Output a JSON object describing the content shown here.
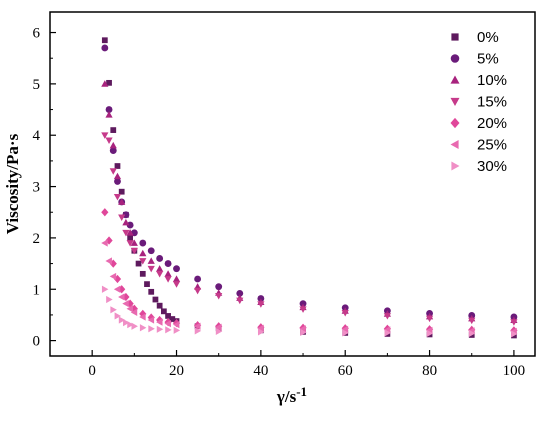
{
  "chart_data": {
    "type": "scatter",
    "xlabel": "γ/s",
    "xlabel_sup": "-1",
    "ylabel": "Viscosity/Pa·s",
    "xlim": [
      -10,
      105
    ],
    "ylim": [
      -0.3,
      6.4
    ],
    "xticks": [
      0,
      20,
      40,
      60,
      80,
      100
    ],
    "yticks": [
      0,
      1,
      2,
      3,
      4,
      5,
      6
    ],
    "legend_position": "top-right",
    "series": [
      {
        "name": "0%",
        "marker": "square",
        "color": "#5e1a5e",
        "points": [
          [
            3,
            5.85
          ],
          [
            4,
            5.02
          ],
          [
            5,
            4.1
          ],
          [
            6,
            3.4
          ],
          [
            7,
            2.9
          ],
          [
            8,
            2.45
          ],
          [
            9,
            2.0
          ],
          [
            10,
            1.75
          ],
          [
            11,
            1.5
          ],
          [
            12,
            1.3
          ],
          [
            13,
            1.1
          ],
          [
            14,
            0.95
          ],
          [
            15,
            0.8
          ],
          [
            16,
            0.68
          ],
          [
            17,
            0.57
          ],
          [
            18,
            0.48
          ],
          [
            19,
            0.42
          ],
          [
            20,
            0.38
          ],
          [
            25,
            0.28
          ],
          [
            30,
            0.24
          ],
          [
            40,
            0.2
          ],
          [
            50,
            0.17
          ],
          [
            60,
            0.15
          ],
          [
            70,
            0.13
          ],
          [
            80,
            0.12
          ],
          [
            90,
            0.11
          ],
          [
            100,
            0.1
          ]
        ]
      },
      {
        "name": "5%",
        "marker": "circle",
        "color": "#6a1b7a",
        "points": [
          [
            3,
            5.7
          ],
          [
            4,
            4.5
          ],
          [
            5,
            3.7
          ],
          [
            6,
            3.1
          ],
          [
            7,
            2.7
          ],
          [
            8,
            2.45
          ],
          [
            9,
            2.25
          ],
          [
            10,
            2.1
          ],
          [
            12,
            1.9
          ],
          [
            14,
            1.75
          ],
          [
            16,
            1.6
          ],
          [
            18,
            1.5
          ],
          [
            20,
            1.4
          ],
          [
            25,
            1.2
          ],
          [
            30,
            1.05
          ],
          [
            35,
            0.92
          ],
          [
            40,
            0.82
          ],
          [
            50,
            0.72
          ],
          [
            60,
            0.64
          ],
          [
            70,
            0.58
          ],
          [
            80,
            0.53
          ],
          [
            90,
            0.49
          ],
          [
            100,
            0.46
          ]
        ]
      },
      {
        "name": "10%",
        "marker": "triangle-up",
        "color": "#a8237e",
        "points": [
          [
            3,
            5.0
          ],
          [
            4,
            4.4
          ],
          [
            5,
            3.8
          ],
          [
            6,
            3.2
          ],
          [
            7,
            2.7
          ],
          [
            8,
            2.3
          ],
          [
            9,
            2.1
          ],
          [
            10,
            1.9
          ],
          [
            12,
            1.7
          ],
          [
            14,
            1.55
          ],
          [
            16,
            1.4
          ],
          [
            18,
            1.3
          ],
          [
            20,
            1.2
          ],
          [
            25,
            1.05
          ],
          [
            30,
            0.93
          ],
          [
            35,
            0.83
          ],
          [
            40,
            0.75
          ],
          [
            50,
            0.65
          ],
          [
            60,
            0.58
          ],
          [
            70,
            0.52
          ],
          [
            80,
            0.47
          ],
          [
            90,
            0.43
          ],
          [
            100,
            0.4
          ]
        ]
      },
      {
        "name": "15%",
        "marker": "triangle-down",
        "color": "#c63a8a",
        "points": [
          [
            3,
            4.0
          ],
          [
            4,
            3.9
          ],
          [
            5,
            3.3
          ],
          [
            6,
            2.8
          ],
          [
            7,
            2.4
          ],
          [
            8,
            2.1
          ],
          [
            9,
            1.9
          ],
          [
            10,
            1.75
          ],
          [
            12,
            1.55
          ],
          [
            14,
            1.4
          ],
          [
            16,
            1.3
          ],
          [
            18,
            1.2
          ],
          [
            20,
            1.1
          ],
          [
            25,
            0.97
          ],
          [
            30,
            0.87
          ],
          [
            35,
            0.78
          ],
          [
            40,
            0.71
          ],
          [
            50,
            0.61
          ],
          [
            60,
            0.54
          ],
          [
            70,
            0.48
          ],
          [
            80,
            0.43
          ],
          [
            90,
            0.39
          ],
          [
            100,
            0.36
          ]
        ]
      },
      {
        "name": "20%",
        "marker": "diamond",
        "color": "#e0479a",
        "points": [
          [
            3,
            2.5
          ],
          [
            4,
            1.95
          ],
          [
            5,
            1.5
          ],
          [
            6,
            1.2
          ],
          [
            7,
            1.0
          ],
          [
            8,
            0.85
          ],
          [
            9,
            0.72
          ],
          [
            10,
            0.62
          ],
          [
            12,
            0.52
          ],
          [
            14,
            0.45
          ],
          [
            16,
            0.4
          ],
          [
            18,
            0.36
          ],
          [
            20,
            0.34
          ],
          [
            25,
            0.3
          ],
          [
            30,
            0.28
          ],
          [
            40,
            0.26
          ],
          [
            50,
            0.25
          ],
          [
            60,
            0.24
          ],
          [
            70,
            0.23
          ],
          [
            80,
            0.22
          ],
          [
            90,
            0.21
          ],
          [
            100,
            0.2
          ]
        ]
      },
      {
        "name": "25%",
        "marker": "triangle-left",
        "color": "#e86ab0",
        "points": [
          [
            3,
            1.9
          ],
          [
            4,
            1.55
          ],
          [
            5,
            1.25
          ],
          [
            6,
            1.0
          ],
          [
            7,
            0.85
          ],
          [
            8,
            0.72
          ],
          [
            9,
            0.62
          ],
          [
            10,
            0.55
          ],
          [
            12,
            0.46
          ],
          [
            14,
            0.4
          ],
          [
            16,
            0.36
          ],
          [
            18,
            0.33
          ],
          [
            20,
            0.31
          ],
          [
            25,
            0.28
          ],
          [
            30,
            0.26
          ],
          [
            40,
            0.24
          ],
          [
            50,
            0.23
          ],
          [
            60,
            0.22
          ],
          [
            70,
            0.21
          ],
          [
            80,
            0.2
          ],
          [
            90,
            0.19
          ],
          [
            100,
            0.18
          ]
        ]
      },
      {
        "name": "30%",
        "marker": "triangle-right",
        "color": "#f08fc6",
        "points": [
          [
            3,
            1.0
          ],
          [
            4,
            0.8
          ],
          [
            5,
            0.6
          ],
          [
            6,
            0.48
          ],
          [
            7,
            0.4
          ],
          [
            8,
            0.35
          ],
          [
            9,
            0.31
          ],
          [
            10,
            0.28
          ],
          [
            12,
            0.25
          ],
          [
            14,
            0.23
          ],
          [
            16,
            0.22
          ],
          [
            18,
            0.21
          ],
          [
            20,
            0.2
          ],
          [
            25,
            0.19
          ],
          [
            30,
            0.18
          ],
          [
            40,
            0.17
          ],
          [
            50,
            0.16
          ],
          [
            60,
            0.15
          ],
          [
            70,
            0.15
          ],
          [
            80,
            0.14
          ],
          [
            90,
            0.14
          ],
          [
            100,
            0.13
          ]
        ]
      }
    ]
  }
}
